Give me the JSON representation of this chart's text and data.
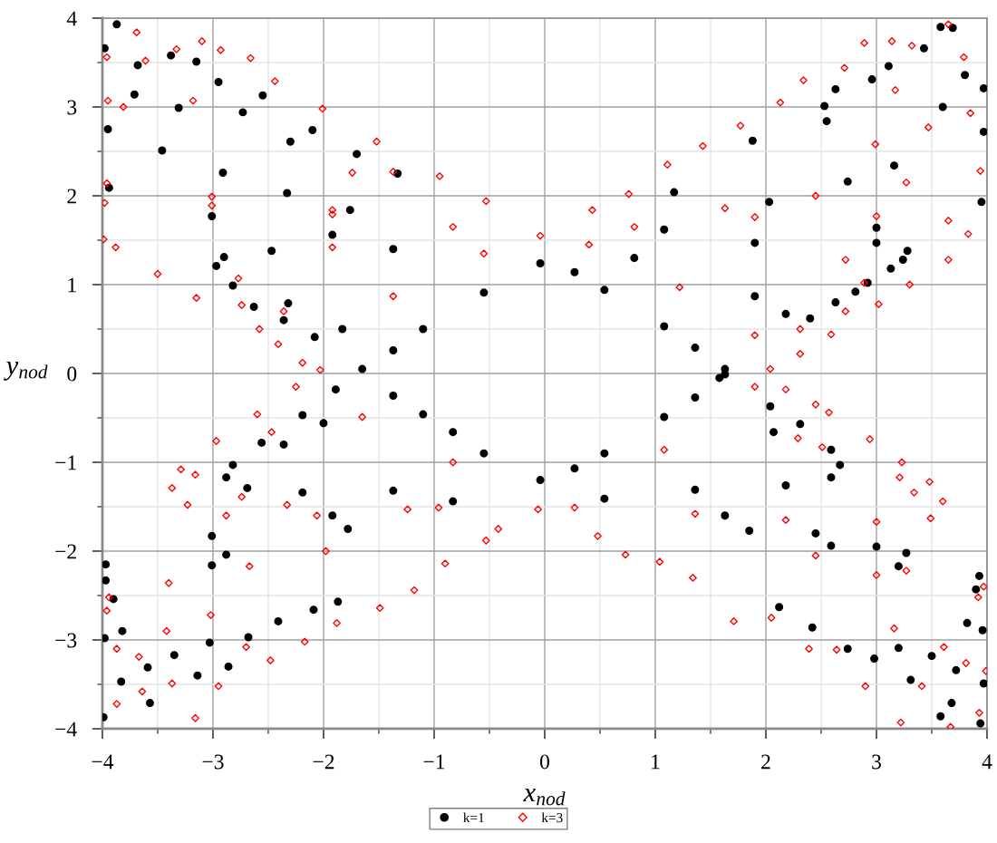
{
  "chart_data": {
    "type": "scatter",
    "xlabel": "x$_{nod}$",
    "ylabel": "y$_{nod}$",
    "xlim": [
      -4,
      4
    ],
    "ylim": [
      -4,
      4
    ],
    "xticks": [
      {
        "value": -4,
        "label": "−4"
      },
      {
        "value": -3.5,
        "label": null
      },
      {
        "value": -3,
        "label": "−3"
      },
      {
        "value": -2.5,
        "label": null
      },
      {
        "value": -2,
        "label": "−2"
      },
      {
        "value": -1.5,
        "label": null
      },
      {
        "value": -1,
        "label": "−1"
      },
      {
        "value": -0.5,
        "label": null
      },
      0,
      {
        "value": 0.5,
        "label": null
      },
      1,
      {
        "value": 1.5,
        "label": null
      },
      2,
      {
        "value": 2.5,
        "label": null
      },
      3,
      {
        "value": 3.5,
        "label": null
      },
      4
    ],
    "yticks": [
      {
        "value": -4,
        "label": "−4"
      },
      {
        "value": -3.5,
        "label": null
      },
      {
        "value": -3,
        "label": "−3"
      },
      {
        "value": -2.5,
        "label": null
      },
      {
        "value": -2,
        "label": "−2"
      },
      {
        "value": -1.5,
        "label": null
      },
      {
        "value": -1,
        "label": "−1"
      },
      {
        "value": -0.5,
        "label": null
      },
      0,
      {
        "value": 0.5,
        "label": null
      },
      1,
      {
        "value": 1.5,
        "label": null
      },
      2,
      {
        "value": 2.5,
        "label": null
      },
      3,
      {
        "value": 3.5,
        "label": null
      },
      4
    ],
    "grid": true,
    "legend": "bottom",
    "series": [
      {
        "name": "k=1",
        "color": "#000000",
        "marker": "circle",
        "x": [
          -3.87,
          -3.98,
          -3.68,
          -3.71,
          -3.38,
          -3.31,
          -3.15,
          -2.95,
          -2.73,
          -2.55,
          -2.3,
          -2.1,
          -1.7,
          -1.33,
          -3.95,
          -3.46,
          -2.91,
          -2.33,
          -1.76,
          -3.94,
          -3.01,
          -1.92,
          -2.97,
          -2.9,
          -2.47,
          -1.37,
          -2.82,
          -2.63,
          -2.36,
          -2.08,
          -2.32,
          -1.83,
          -1.65,
          -1.37,
          -1.1,
          -0.55,
          -0.04,
          3.58,
          3.69,
          3.43,
          3.8,
          3.11,
          3.97,
          2.96,
          2.63,
          2.53,
          3.6,
          2.55,
          1.88,
          1.17,
          3.97,
          3.16,
          2.74,
          2.03,
          1.08,
          3.95,
          3.0,
          1.9,
          0.81,
          3.28,
          3.0,
          3.24,
          3.13,
          2.92,
          2.81,
          2.63,
          2.4,
          2.18,
          1.9,
          1.63,
          1.36,
          1.08,
          0.54,
          0.27,
          -3.98,
          -3.82,
          -3.83,
          -3.99,
          -3.57,
          -3.59,
          -3.35,
          -3.14,
          -3.03,
          -2.86,
          -2.68,
          -2.41,
          -2.09,
          -1.87,
          -3.97,
          -3.01,
          -1.92,
          -0.83,
          -3.97,
          -2.88,
          -1.78,
          -3.9,
          -3.01,
          -2.88,
          -2.69,
          -2.19,
          -1.37,
          -2.82,
          -2.56,
          -2.19,
          -1.89,
          -2.36,
          -2.0,
          -1.37,
          -1.1,
          -0.83,
          -0.55,
          -0.04,
          3.96,
          3.97,
          3.94,
          3.68,
          3.58,
          3.72,
          3.82,
          3.5,
          3.31,
          3.2,
          2.98,
          2.74,
          2.42,
          2.12,
          3.93,
          3.27,
          2.45,
          1.63,
          3.9,
          3.2,
          2.59,
          1.85,
          3.0,
          2.67,
          2.59,
          2.31,
          2.04,
          2.59,
          2.18,
          1.36,
          0.54,
          2.07,
          1.63,
          0.27,
          0.54,
          1.08,
          1.36,
          1.58
        ],
        "values": [
          3.93,
          3.66,
          3.47,
          3.14,
          3.58,
          2.99,
          3.51,
          3.28,
          2.94,
          3.13,
          2.61,
          2.74,
          2.47,
          2.25,
          2.75,
          2.51,
          2.26,
          2.03,
          1.84,
          2.09,
          1.77,
          1.56,
          1.21,
          1.31,
          1.38,
          1.4,
          0.99,
          0.75,
          0.6,
          0.41,
          0.79,
          0.5,
          0.05,
          0.26,
          0.5,
          0.91,
          1.24,
          3.9,
          3.89,
          3.66,
          3.36,
          3.46,
          3.21,
          3.31,
          3.2,
          3.01,
          3.0,
          2.84,
          2.62,
          2.04,
          2.72,
          2.34,
          2.16,
          1.93,
          1.62,
          1.93,
          1.64,
          1.47,
          1.3,
          1.38,
          1.47,
          1.28,
          1.18,
          1.02,
          0.92,
          0.8,
          0.62,
          0.67,
          0.87,
          0.05,
          0.29,
          0.53,
          0.94,
          1.14,
          -2.98,
          -2.9,
          -3.47,
          -3.87,
          -3.71,
          -3.31,
          -3.17,
          -3.4,
          -3.03,
          -3.3,
          -2.97,
          -2.79,
          -2.66,
          -2.57,
          -2.15,
          -1.83,
          -1.6,
          -1.44,
          -2.33,
          -2.04,
          -1.75,
          -2.54,
          -2.16,
          -1.17,
          -1.29,
          -1.34,
          -1.32,
          -1.03,
          -0.78,
          -0.47,
          -0.18,
          -0.8,
          -0.56,
          -0.25,
          -0.46,
          -0.66,
          -0.9,
          -1.2,
          -2.89,
          -3.49,
          -3.94,
          -3.71,
          -3.86,
          -3.34,
          -2.81,
          -3.18,
          -3.45,
          -3.09,
          -3.21,
          -3.1,
          -2.86,
          -2.63,
          -2.28,
          -2.02,
          -1.8,
          -1.6,
          -2.43,
          -2.17,
          -1.94,
          -1.77,
          -1.95,
          -1.03,
          -0.86,
          -0.57,
          -0.37,
          -1.17,
          -1.26,
          -1.31,
          -1.41,
          -0.66,
          -0.01,
          -1.07,
          -0.9,
          -0.49,
          -0.27,
          -0.05
        ]
      },
      {
        "name": "k=3",
        "color": "#ff0000",
        "marker": "diamond",
        "x": [
          -3.69,
          -3.96,
          -3.95,
          -3.81,
          -3.61,
          -3.33,
          -3.18,
          -3.1,
          -2.93,
          -2.66,
          -2.44,
          -2.01,
          -1.52,
          -0.95,
          -0.53,
          -1.37,
          -1.74,
          -3.99,
          -3.88,
          -3.5,
          -3.15,
          -3.96,
          -3.01,
          -1.92,
          -0.83,
          -3.98,
          -3.01,
          -1.92,
          -2.77,
          -2.74,
          -2.58,
          -2.41,
          -2.19,
          -2.03,
          -2.36,
          -1.92,
          -1.37,
          -0.55,
          -0.04,
          3.65,
          2.89,
          3.14,
          3.32,
          3.79,
          3.17,
          2.71,
          2.34,
          3.85,
          3.47,
          2.99,
          2.13,
          1.77,
          1.43,
          1.11,
          0.76,
          0.43,
          3.94,
          3.27,
          2.45,
          1.63,
          3.83,
          3.65,
          3.0,
          1.9,
          0.81,
          3.65,
          3.3,
          3.02,
          2.59,
          2.04,
          2.89,
          2.72,
          2.72,
          2.31,
          2.31,
          0.4,
          1.22,
          1.9,
          -3.87,
          -3.87,
          -3.67,
          -3.64,
          -3.42,
          -3.37,
          -3.16,
          -3.02,
          -2.95,
          -2.7,
          -2.48,
          -2.17,
          -1.88,
          -1.49,
          -1.18,
          -0.9,
          -0.53,
          -3.94,
          -3.4,
          -2.67,
          -1.98,
          -3.96,
          -2.25,
          -2.6,
          -2.97,
          -3.29,
          -3.37,
          -3.23,
          -2.88,
          -2.06,
          -1.24,
          -0.96,
          -3.16,
          -2.74,
          -2.47,
          -2.33,
          -1.65,
          -0.83,
          -0.06,
          -0.42,
          3.99,
          3.93,
          3.67,
          3.81,
          3.61,
          3.41,
          3.22,
          3.16,
          2.9,
          2.64,
          2.39,
          2.05,
          1.71,
          1.34,
          1.04,
          0.73,
          0.48,
          3.97,
          3.27,
          2.45,
          3.92,
          3.0,
          2.18,
          2.57,
          2.94,
          3.23,
          3.48,
          3.6,
          3.49,
          3.0,
          2.18,
          1.36,
          3.34,
          3.21,
          2.45,
          2.51,
          2.29,
          0.27,
          1.08,
          1.9
        ],
        "values": [
          3.84,
          3.56,
          3.07,
          3.0,
          3.52,
          3.65,
          3.07,
          3.74,
          3.64,
          3.55,
          3.29,
          2.98,
          2.61,
          2.22,
          1.94,
          2.27,
          2.26,
          1.51,
          1.42,
          1.12,
          0.85,
          2.14,
          1.99,
          1.84,
          1.65,
          1.92,
          1.89,
          1.79,
          1.07,
          0.77,
          0.5,
          0.33,
          0.12,
          0.04,
          0.7,
          1.42,
          0.87,
          1.35,
          1.55,
          3.93,
          3.72,
          3.74,
          3.69,
          3.56,
          3.19,
          3.44,
          3.3,
          2.93,
          2.77,
          2.58,
          3.05,
          2.79,
          2.56,
          2.35,
          2.02,
          1.84,
          2.28,
          2.15,
          2.0,
          1.86,
          1.57,
          1.72,
          1.77,
          1.76,
          1.65,
          1.28,
          1.0,
          0.78,
          0.44,
          0.05,
          1.02,
          1.28,
          0.7,
          0.22,
          0.5,
          1.45,
          0.97,
          0.43,
          -3.1,
          -3.72,
          -3.19,
          -3.58,
          -2.9,
          -3.49,
          -3.88,
          -2.72,
          -3.52,
          -3.08,
          -3.23,
          -3.02,
          -2.81,
          -2.64,
          -2.44,
          -2.14,
          -1.88,
          -2.52,
          -2.36,
          -2.17,
          -2.0,
          -2.67,
          -0.15,
          -0.46,
          -0.76,
          -1.08,
          -1.29,
          -1.48,
          -1.6,
          -1.6,
          -1.53,
          -1.51,
          -1.14,
          -1.39,
          -0.66,
          -1.48,
          -0.49,
          -1.0,
          -1.53,
          -1.75,
          -3.35,
          -3.82,
          -3.98,
          -3.26,
          -3.08,
          -3.52,
          -3.93,
          -2.87,
          -3.52,
          -3.11,
          -3.1,
          -2.75,
          -2.79,
          -2.3,
          -2.12,
          -2.04,
          -1.83,
          -2.4,
          -2.22,
          -2.05,
          -2.52,
          -2.27,
          -0.18,
          -0.44,
          -0.74,
          -1.0,
          -1.22,
          -1.44,
          -1.63,
          -1.67,
          -1.65,
          -1.58,
          -1.34,
          -1.17,
          -0.35,
          -0.83,
          -0.73,
          -1.51,
          -0.86,
          -0.15
        ]
      }
    ]
  }
}
